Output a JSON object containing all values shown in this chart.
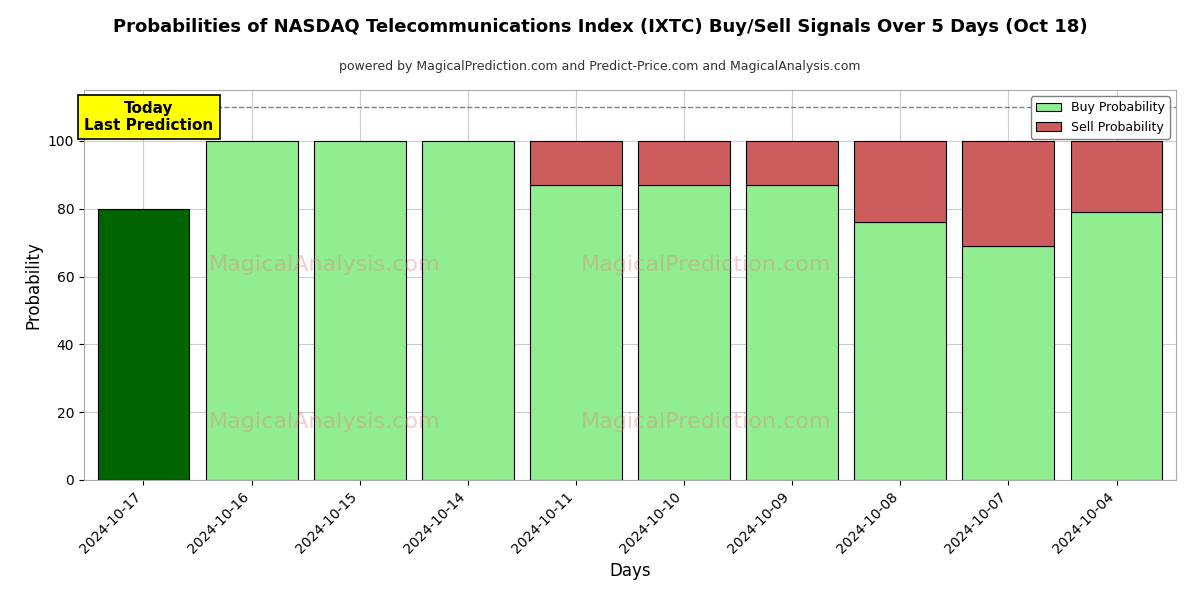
{
  "title": "Probabilities of NASDAQ Telecommunications Index (IXTC) Buy/Sell Signals Over 5 Days (Oct 18)",
  "subtitle": "powered by MagicalPrediction.com and Predict-Price.com and MagicalAnalysis.com",
  "xlabel": "Days",
  "ylabel": "Probability",
  "categories": [
    "2024-10-17",
    "2024-10-16",
    "2024-10-15",
    "2024-10-14",
    "2024-10-11",
    "2024-10-10",
    "2024-10-09",
    "2024-10-08",
    "2024-10-07",
    "2024-10-04"
  ],
  "buy_values": [
    80,
    100,
    100,
    100,
    87,
    87,
    87,
    76,
    69,
    79
  ],
  "sell_values": [
    0,
    0,
    0,
    0,
    13,
    13,
    13,
    24,
    31,
    21
  ],
  "today_index": 0,
  "buy_color_today": "#006400",
  "buy_color_normal": "#90EE90",
  "sell_color": "#CD5C5C",
  "bar_edge_color": "#000000",
  "today_annotation": "Today\nLast Prediction",
  "today_annotation_bg": "#FFFF00",
  "ylim": [
    0,
    115
  ],
  "yticks": [
    0,
    20,
    40,
    60,
    80,
    100
  ],
  "dashed_line_y": 110,
  "legend_buy_label": "Buy Probability",
  "legend_sell_label": "Sell Probability",
  "background_color": "#ffffff",
  "grid_color": "#cccccc",
  "watermark_color": "#e88080",
  "watermark_alpha": 0.4
}
